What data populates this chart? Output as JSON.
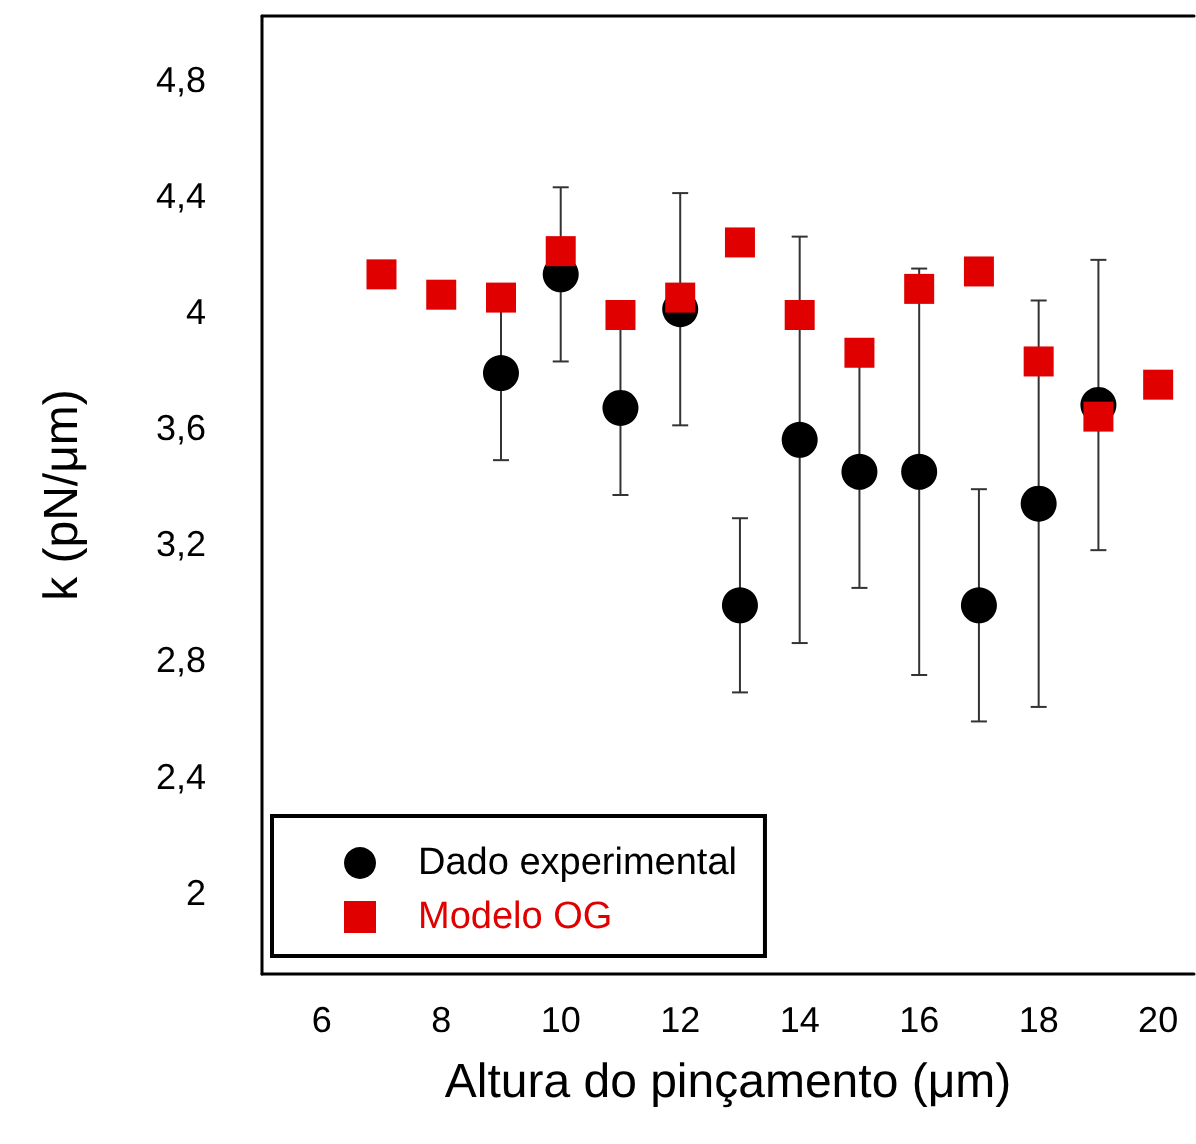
{
  "chart_data": {
    "type": "scatter",
    "xlabel": "Altura do pinçamento (μm)",
    "ylabel": "k (pN/μm)",
    "xlim": [
      5,
      20.6
    ],
    "xticks": [
      6,
      8,
      10,
      12,
      14,
      16,
      18,
      20
    ],
    "ylim": [
      1.72,
      5.02
    ],
    "yticks": [
      {
        "value": 2,
        "label": "2"
      },
      {
        "value": 2.4,
        "label": "2,4"
      },
      {
        "value": 2.8,
        "label": "2,8"
      },
      {
        "value": 3.2,
        "label": "3,2"
      },
      {
        "value": 3.6,
        "label": "3,6"
      },
      {
        "value": 4,
        "label": "4"
      },
      {
        "value": 4.4,
        "label": "4,4"
      },
      {
        "value": 4.8,
        "label": "4,8"
      }
    ],
    "grid": false,
    "legend": "bottom left",
    "series": [
      {
        "name": "Dado experimental",
        "color": "#000000",
        "marker": "circle",
        "x": [
          9,
          10,
          11,
          12,
          13,
          14,
          15,
          16,
          17,
          18,
          19
        ],
        "values": [
          3.79,
          4.13,
          3.67,
          4.01,
          2.99,
          3.56,
          3.45,
          3.45,
          2.99,
          3.34,
          3.68
        ],
        "errors": [
          0.3,
          0.3,
          0.3,
          0.4,
          0.3,
          0.7,
          0.4,
          0.7,
          0.4,
          0.7,
          0.5
        ]
      },
      {
        "name": "Modelo OG",
        "color": "#e00000",
        "marker": "square",
        "x": [
          7,
          8,
          9,
          10,
          11,
          12,
          13,
          14,
          15,
          16,
          17,
          18,
          19,
          20
        ],
        "values": [
          4.13,
          4.06,
          4.05,
          4.21,
          3.99,
          4.05,
          4.24,
          3.99,
          3.86,
          4.08,
          4.14,
          3.83,
          3.64,
          3.75
        ]
      }
    ]
  }
}
